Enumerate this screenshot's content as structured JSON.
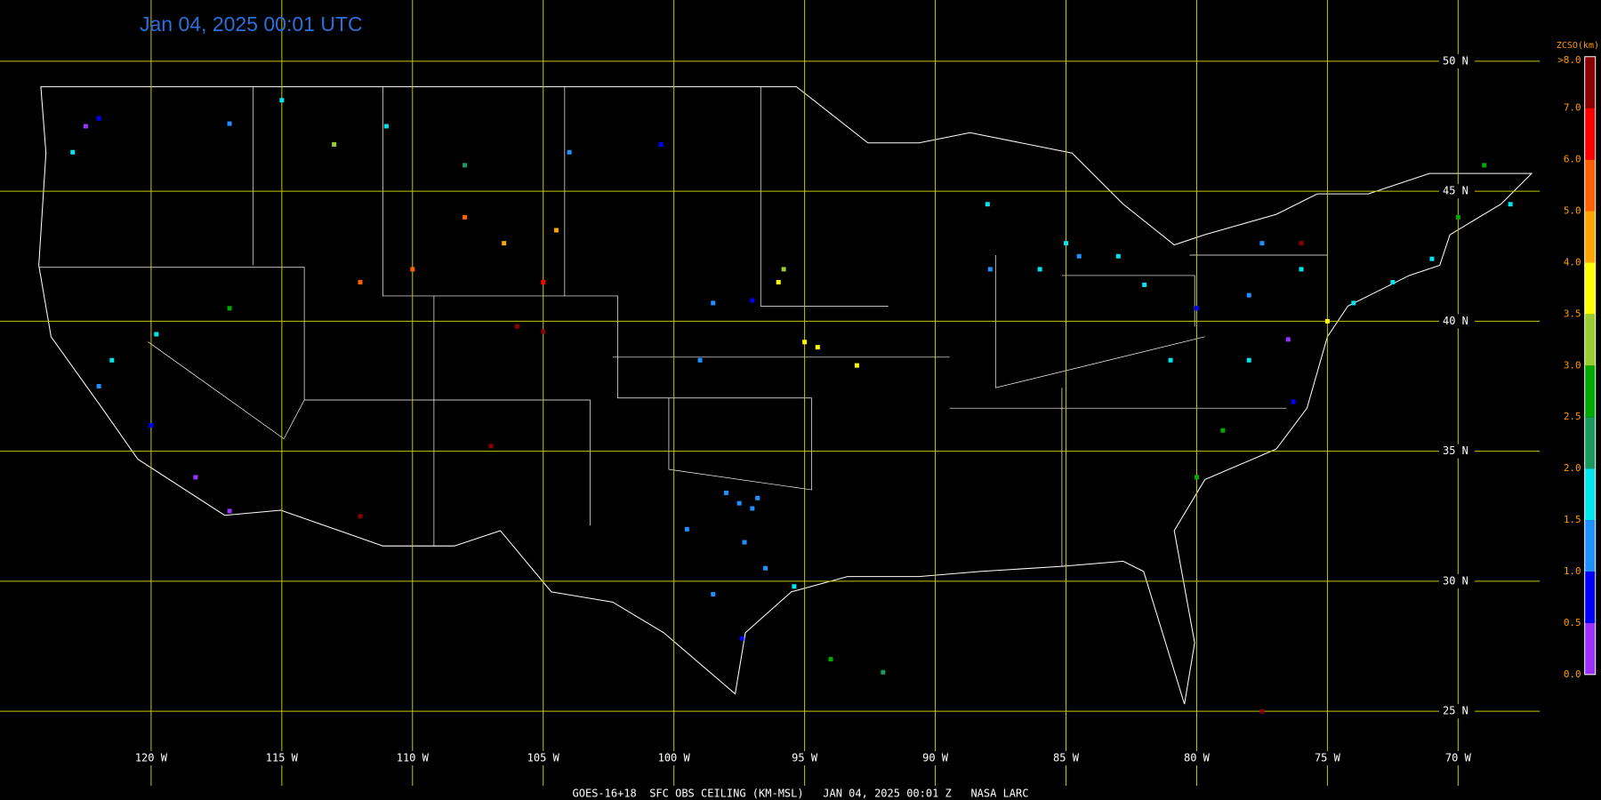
{
  "title": "Jan 04, 2025 00:01 UTC",
  "footer": "GOES-16+18  SFC OBS CEILING (KM-MSL)   JAN 04, 2025 00:01 Z   NASA LARC",
  "latitudes": [
    {
      "value": 50,
      "label": "50 N"
    },
    {
      "value": 45,
      "label": "45 N"
    },
    {
      "value": 40,
      "label": "40 N"
    },
    {
      "value": 35,
      "label": "35 N"
    },
    {
      "value": 30,
      "label": "30 N"
    },
    {
      "value": 25,
      "label": "25 N"
    }
  ],
  "longitudes": [
    {
      "value": -120,
      "label": "120 W"
    },
    {
      "value": -115,
      "label": "115 W"
    },
    {
      "value": -110,
      "label": "110 W"
    },
    {
      "value": -105,
      "label": "105 W"
    },
    {
      "value": -100,
      "label": "100 W"
    },
    {
      "value": -95,
      "label": "95 W"
    },
    {
      "value": -90,
      "label": "90 W"
    },
    {
      "value": -85,
      "label": "85 W"
    },
    {
      "value": -80,
      "label": "80 W"
    },
    {
      "value": -75,
      "label": "75 W"
    },
    {
      "value": -70,
      "label": "70 W"
    }
  ],
  "colorbar": {
    "title": "ZCSO(km)",
    "top_label": ">8.0",
    "ticks": [
      {
        "value": 0,
        "label": "0.0"
      },
      {
        "value": 0.5,
        "label": "0.5"
      },
      {
        "value": 1,
        "label": "1.0"
      },
      {
        "value": 1.5,
        "label": "1.5"
      },
      {
        "value": 2,
        "label": "2.0"
      },
      {
        "value": 2.5,
        "label": "2.5"
      },
      {
        "value": 3,
        "label": "3.0"
      },
      {
        "value": 3.5,
        "label": "3.5"
      },
      {
        "value": 4,
        "label": "4.0"
      },
      {
        "value": 5,
        "label": "5.0"
      },
      {
        "value": 6,
        "label": "6.0"
      },
      {
        "value": 7,
        "label": "7.0"
      }
    ],
    "colors": [
      "#9b30ff",
      "#0000ff",
      "#1e90ff",
      "#00e5ee",
      "#1a9860",
      "#00aa00",
      "#9acd32",
      "#ffff00",
      "#ffa500",
      "#ff6000",
      "#ff0000",
      "#8b0000"
    ]
  },
  "observations": [
    {
      "lon": -97.5,
      "lat": 33.0,
      "ceiling": 1.2
    },
    {
      "lon": -97.0,
      "lat": 32.8,
      "ceiling": 1.3
    },
    {
      "lon": -96.8,
      "lat": 33.2,
      "ceiling": 1.2
    },
    {
      "lon": -98.0,
      "lat": 33.4,
      "ceiling": 1.1
    },
    {
      "lon": -97.3,
      "lat": 31.5,
      "ceiling": 1.1
    },
    {
      "lon": -96.5,
      "lat": 30.5,
      "ceiling": 1.1
    },
    {
      "lon": -95.4,
      "lat": 29.8,
      "ceiling": 1.7
    },
    {
      "lon": -97.4,
      "lat": 27.8,
      "ceiling": 0.6
    },
    {
      "lon": -98.5,
      "lat": 29.5,
      "ceiling": 1.0
    },
    {
      "lon": -99.5,
      "lat": 32.0,
      "ceiling": 1.2
    },
    {
      "lon": -94.0,
      "lat": 27.0,
      "ceiling": 2.5
    },
    {
      "lon": -92.0,
      "lat": 26.5,
      "ceiling": 2.3
    },
    {
      "lon": -95.0,
      "lat": 39.2,
      "ceiling": 3.7
    },
    {
      "lon": -94.5,
      "lat": 39.0,
      "ceiling": 3.6
    },
    {
      "lon": -93.0,
      "lat": 38.3,
      "ceiling": 3.9
    },
    {
      "lon": -96.0,
      "lat": 41.5,
      "ceiling": 3.6
    },
    {
      "lon": -95.8,
      "lat": 42.0,
      "ceiling": 3.1
    },
    {
      "lon": -98.5,
      "lat": 40.7,
      "ceiling": 1.0
    },
    {
      "lon": -97.0,
      "lat": 40.8,
      "ceiling": 0.8
    },
    {
      "lon": -99.0,
      "lat": 38.5,
      "ceiling": 1.2
    },
    {
      "lon": -106.5,
      "lat": 43.0,
      "ceiling": 4.5
    },
    {
      "lon": -108.0,
      "lat": 44.0,
      "ceiling": 5.0
    },
    {
      "lon": -104.5,
      "lat": 43.5,
      "ceiling": 4.5
    },
    {
      "lon": -110.0,
      "lat": 42.0,
      "ceiling": 5.5
    },
    {
      "lon": -105.0,
      "lat": 41.5,
      "ceiling": 6.0
    },
    {
      "lon": -112.0,
      "lat": 41.5,
      "ceiling": 5.5
    },
    {
      "lon": -105.0,
      "lat": 39.6,
      "ceiling": 7.5
    },
    {
      "lon": -106.0,
      "lat": 39.8,
      "ceiling": 7.2
    },
    {
      "lon": -107.0,
      "lat": 35.2,
      "ceiling": 7.5
    },
    {
      "lon": -112.0,
      "lat": 32.5,
      "ceiling": 7.3
    },
    {
      "lon": -122.5,
      "lat": 47.5,
      "ceiling": 0.4
    },
    {
      "lon": -122.0,
      "lat": 47.8,
      "ceiling": 0.9
    },
    {
      "lon": -123.0,
      "lat": 46.5,
      "ceiling": 1.8
    },
    {
      "lon": -117.0,
      "lat": 47.6,
      "ceiling": 1.0
    },
    {
      "lon": -115.0,
      "lat": 48.5,
      "ceiling": 1.8
    },
    {
      "lon": -113.0,
      "lat": 46.8,
      "ceiling": 3.0
    },
    {
      "lon": -111.0,
      "lat": 47.5,
      "ceiling": 1.8
    },
    {
      "lon": -108.0,
      "lat": 46.0,
      "ceiling": 2.0
    },
    {
      "lon": -104.0,
      "lat": 46.5,
      "ceiling": 1.3
    },
    {
      "lon": -100.5,
      "lat": 46.8,
      "ceiling": 0.9
    },
    {
      "lon": -118.3,
      "lat": 34.0,
      "ceiling": 0.4
    },
    {
      "lon": -122.0,
      "lat": 37.5,
      "ceiling": 1.0
    },
    {
      "lon": -121.5,
      "lat": 38.5,
      "ceiling": 1.8
    },
    {
      "lon": -117.0,
      "lat": 32.7,
      "ceiling": 0.4
    },
    {
      "lon": -120.0,
      "lat": 36.0,
      "ceiling": 0.9
    },
    {
      "lon": -119.8,
      "lat": 39.5,
      "ceiling": 1.6
    },
    {
      "lon": -117.0,
      "lat": 40.5,
      "ceiling": 2.7
    },
    {
      "lon": -85.0,
      "lat": 43.0,
      "ceiling": 1.5
    },
    {
      "lon": -84.5,
      "lat": 42.5,
      "ceiling": 1.4
    },
    {
      "lon": -86.0,
      "lat": 42.0,
      "ceiling": 1.7
    },
    {
      "lon": -87.9,
      "lat": 42.0,
      "ceiling": 1.0
    },
    {
      "lon": -88.0,
      "lat": 44.5,
      "ceiling": 1.5
    },
    {
      "lon": -83.0,
      "lat": 42.5,
      "ceiling": 1.8
    },
    {
      "lon": -82.0,
      "lat": 41.4,
      "ceiling": 1.6
    },
    {
      "lon": -80.0,
      "lat": 40.5,
      "ceiling": 0.9
    },
    {
      "lon": -78.0,
      "lat": 41.0,
      "ceiling": 1.0
    },
    {
      "lon": -76.0,
      "lat": 42.0,
      "ceiling": 1.8
    },
    {
      "lon": -77.5,
      "lat": 43.0,
      "ceiling": 1.0
    },
    {
      "lon": -76.0,
      "lat": 43.0,
      "ceiling": 7.5
    },
    {
      "lon": -74.0,
      "lat": 40.7,
      "ceiling": 1.9
    },
    {
      "lon": -75.0,
      "lat": 40.0,
      "ceiling": 3.8
    },
    {
      "lon": -76.5,
      "lat": 39.3,
      "ceiling": 0.4
    },
    {
      "lon": -76.3,
      "lat": 36.9,
      "ceiling": 0.6
    },
    {
      "lon": -79.0,
      "lat": 35.8,
      "ceiling": 2.7
    },
    {
      "lon": -80.0,
      "lat": 34.0,
      "ceiling": 2.8
    },
    {
      "lon": -78.0,
      "lat": 38.5,
      "ceiling": 1.9
    },
    {
      "lon": -81.0,
      "lat": 38.5,
      "ceiling": 1.6
    },
    {
      "lon": -71.0,
      "lat": 42.4,
      "ceiling": 1.8
    },
    {
      "lon": -72.5,
      "lat": 41.5,
      "ceiling": 1.8
    },
    {
      "lon": -70.0,
      "lat": 44.0,
      "ceiling": 2.8
    },
    {
      "lon": -69.0,
      "lat": 46.0,
      "ceiling": 2.5
    },
    {
      "lon": -68.0,
      "lat": 44.5,
      "ceiling": 1.9
    },
    {
      "lon": -77.5,
      "lat": 25.0,
      "ceiling": 7.5
    }
  ]
}
